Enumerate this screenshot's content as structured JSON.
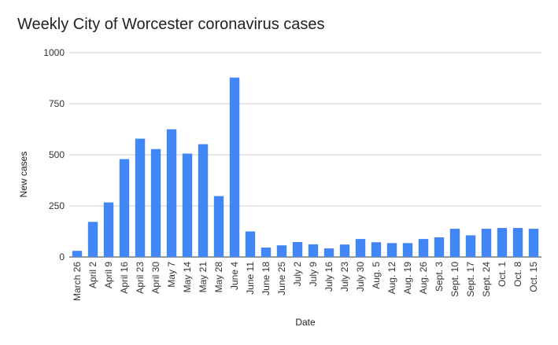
{
  "chart_data": {
    "type": "bar",
    "title": "Weekly City of Worcester coronavirus cases",
    "xlabel": "Date",
    "ylabel": "New cases",
    "ylim": [
      0,
      1000
    ],
    "yticks": [
      0,
      250,
      500,
      750,
      1000
    ],
    "grid": true,
    "legend": "none",
    "bar_color": "#4285f4",
    "categories": [
      "March 26",
      "April 2",
      "April 9",
      "April 16",
      "April 23",
      "April 30",
      "May 7",
      "May 14",
      "May 21",
      "May 28",
      "June 4",
      "June 11",
      "June 18",
      "June 25",
      "July 2",
      "July 9",
      "July 16",
      "July 23",
      "July 30",
      "Aug. 5",
      "Aug. 12",
      "Aug. 19",
      "Aug. 26",
      "Sept. 3",
      "Sept. 10",
      "Sept. 17",
      "Sept. 24",
      "Oct. 1",
      "Oct. 8",
      "Oct. 15"
    ],
    "values": [
      30,
      172,
      267,
      479,
      579,
      528,
      625,
      506,
      552,
      298,
      878,
      125,
      46,
      57,
      73,
      62,
      42,
      61,
      88,
      72,
      68,
      68,
      88,
      96,
      138,
      106,
      138,
      142,
      142,
      138
    ]
  }
}
